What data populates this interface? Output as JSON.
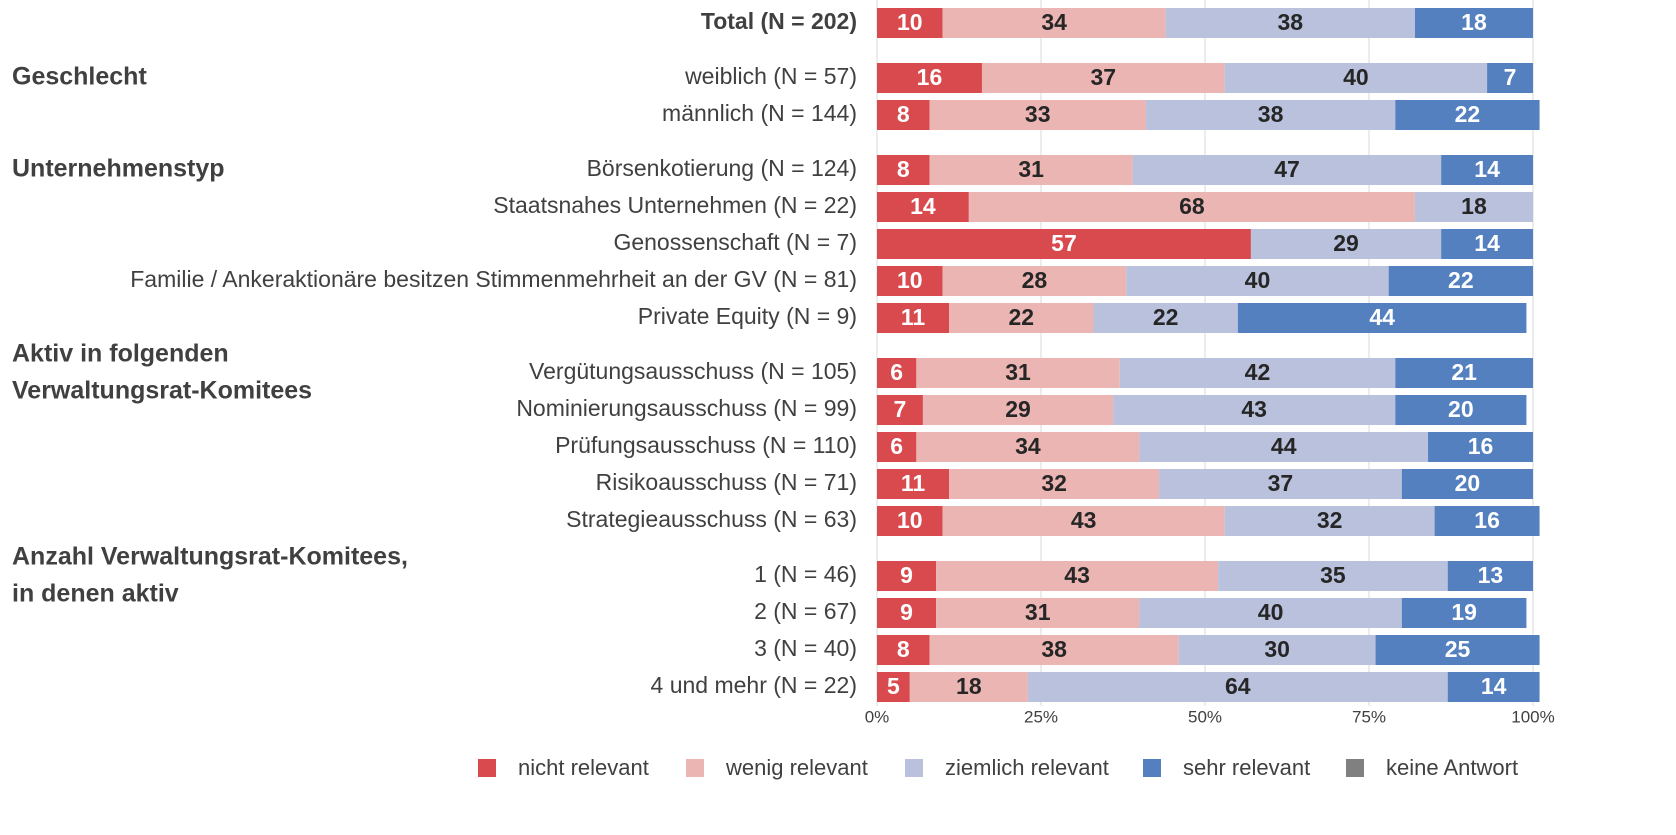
{
  "chart_data": {
    "type": "stacked-bar-horizontal",
    "categories": [
      "Total (N = 202)",
      "weiblich (N = 57)",
      "männlich (N = 144)",
      "Börsenkotierung (N = 124)",
      "Staatsnahes Unternehmen (N = 22)",
      "Genossenschaft (N = 7)",
      "Familie / Ankeraktionäre besitzen Stimmenmehrheit an der GV (N = 81)",
      "Private Equity (N = 9)",
      "Vergütungsausschuss (N = 105)",
      "Nominierungsausschuss (N = 99)",
      "Prüfungsausschuss (N = 110)",
      "Risikoausschuss (N = 71)",
      "Strategieausschuss (N = 63)",
      "1 (N = 46)",
      "2 (N = 67)",
      "3 (N = 40)",
      "4 und mehr (N = 22)"
    ],
    "group_labels": [
      null,
      [
        "Geschlecht"
      ],
      null,
      [
        "Unternehmenstyp"
      ],
      null,
      null,
      null,
      null,
      [
        "Aktiv in folgenden",
        "Verwaltungsrat-Komitees"
      ],
      null,
      null,
      null,
      null,
      [
        "Anzahl Verwaltungsrat-Komitees,",
        "in denen aktiv"
      ],
      null,
      null,
      null
    ],
    "series": [
      {
        "name": "nicht relevant",
        "color": "#d94a4e",
        "label_color": "#ffffff",
        "values": [
          10,
          16,
          8,
          8,
          14,
          57,
          10,
          11,
          6,
          7,
          6,
          11,
          10,
          9,
          9,
          8,
          5
        ]
      },
      {
        "name": "wenig relevant",
        "color": "#ebb5b3",
        "label_color": "#262626",
        "values": [
          34,
          37,
          33,
          31,
          68,
          0,
          28,
          22,
          31,
          29,
          34,
          32,
          43,
          43,
          31,
          38,
          18
        ]
      },
      {
        "name": "ziemlich relevant",
        "color": "#b9c1dc",
        "label_color": "#262626",
        "values": [
          38,
          40,
          38,
          47,
          18,
          29,
          40,
          22,
          42,
          43,
          44,
          37,
          32,
          35,
          40,
          30,
          64
        ]
      },
      {
        "name": "sehr relevant",
        "color": "#5480c0",
        "label_color": "#ffffff",
        "values": [
          18,
          7,
          22,
          14,
          0,
          14,
          22,
          44,
          21,
          20,
          16,
          20,
          16,
          13,
          19,
          25,
          14
        ]
      },
      {
        "name": "keine Antwort",
        "color": "#808080",
        "label_color": "#ffffff",
        "values": [
          0,
          0,
          0,
          0,
          0,
          0,
          0,
          0,
          0,
          0,
          0,
          0,
          0,
          0,
          0,
          0,
          0
        ]
      }
    ],
    "xlim": [
      0,
      100
    ],
    "xticks": [
      {
        "value": 0,
        "label": "0%"
      },
      {
        "value": 25,
        "label": "25%"
      },
      {
        "value": 50,
        "label": "50%"
      },
      {
        "value": 75,
        "label": "75%"
      },
      {
        "value": 100,
        "label": "100%"
      }
    ],
    "grid": true,
    "legend": "bottom"
  }
}
